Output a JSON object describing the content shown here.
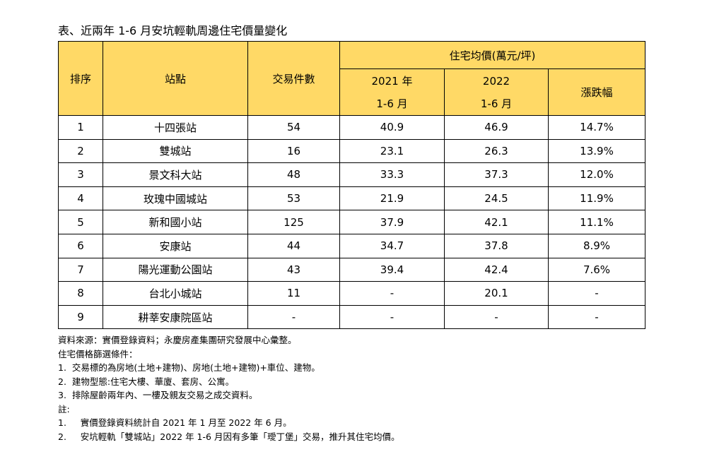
{
  "title": "表、近兩年 1-6 月安坑輕軌周邊住宅價量變化",
  "table": {
    "headers": {
      "rank": "排序",
      "station": "站點",
      "count": "交易件數",
      "price": "住宅均價(萬元/坪)",
      "y2021": [
        "2021 年",
        "1-6 月"
      ],
      "y2022": [
        "2022",
        "1-6 月"
      ],
      "change": "漲跌幅"
    },
    "rows": [
      [
        "1",
        "十四張站",
        "54",
        "40.9",
        "46.9",
        "14.7%"
      ],
      [
        "2",
        "雙城站",
        "16",
        "23.1",
        "26.3",
        "13.9%"
      ],
      [
        "3",
        "景文科大站",
        "48",
        "33.3",
        "37.3",
        "12.0%"
      ],
      [
        "4",
        "玫瑰中國城站",
        "53",
        "21.9",
        "24.5",
        "11.9%"
      ],
      [
        "5",
        "新和國小站",
        "125",
        "37.9",
        "42.1",
        "11.1%"
      ],
      [
        "6",
        "安康站",
        "44",
        "34.7",
        "37.8",
        "8.9%"
      ],
      [
        "7",
        "陽光運動公園站",
        "43",
        "39.4",
        "42.4",
        "7.6%"
      ],
      [
        "8",
        "台北小城站",
        "11",
        "-",
        "20.1",
        "-"
      ],
      [
        "9",
        "耕莘安康院區站",
        "-",
        "-",
        "-",
        "-"
      ]
    ]
  },
  "notes": [
    "資料來源：實價登錄資料；永慶房產集團研究發展中心彙整。",
    "住宅價格篩選條件：",
    "1.  交易標的為房地(土地+建物)、房地(土地+建物)+車位、建物。",
    "2.  建物型態:住宅大樓、華廈、套房、公寓。",
    "3.  排除屋齡兩年內、一樓及親友交易之成交資料。",
    "註:",
    "1.     實價登錄資料統計自 2021 年 1 月至 2022 年 6 月。",
    "2.     安坑輕軌「雙城站」2022 年 1-6 月因有多筆「璦丁堡」交易，推升其住宅均價。"
  ]
}
